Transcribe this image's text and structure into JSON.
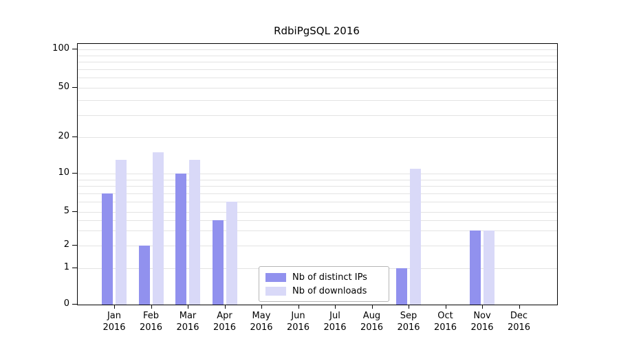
{
  "chart_data": {
    "type": "bar",
    "title": "RdbiPgSQL 2016",
    "categories": [
      "Jan 2016",
      "Feb 2016",
      "Mar 2016",
      "Apr 2016",
      "May 2016",
      "Jun 2016",
      "Jul 2016",
      "Aug 2016",
      "Sep 2016",
      "Oct 2016",
      "Nov 2016",
      "Dec 2016"
    ],
    "months": [
      "Jan",
      "Feb",
      "Mar",
      "Apr",
      "May",
      "Jun",
      "Jul",
      "Aug",
      "Sep",
      "Oct",
      "Nov",
      "Dec"
    ],
    "year": "2016",
    "series": [
      {
        "name": "Nb of distinct IPs",
        "color": "#9191ee",
        "values": [
          7,
          2,
          10,
          4,
          0,
          0,
          0,
          0,
          1,
          0,
          3,
          0
        ]
      },
      {
        "name": "Nb of downloads",
        "color": "#d9d9f8",
        "values": [
          13,
          15,
          13,
          6,
          0,
          0,
          0,
          0,
          11,
          0,
          3,
          0
        ]
      }
    ],
    "yscale": "symlog",
    "yticks": [
      0,
      1,
      2,
      5,
      10,
      20,
      50,
      100
    ],
    "ylim": [
      0,
      112
    ],
    "grid": true,
    "legend_position": "lower center",
    "xlabel": "",
    "ylabel": ""
  }
}
